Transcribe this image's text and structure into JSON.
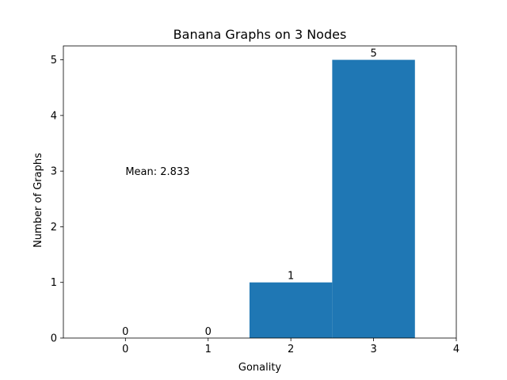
{
  "chart_data": {
    "type": "bar",
    "title": "Banana Graphs on 3 Nodes",
    "xlabel": "Gonality",
    "ylabel": "Number of Graphs",
    "categories": [
      0,
      1,
      2,
      3
    ],
    "values": [
      0,
      0,
      1,
      5
    ],
    "bar_labels": [
      "0",
      "0",
      "1",
      "5"
    ],
    "bar_width": 1,
    "xlim": [
      -0.75,
      4
    ],
    "ylim": [
      0,
      5.25
    ],
    "xticks": [
      0,
      1,
      2,
      3,
      4
    ],
    "yticks": [
      0,
      1,
      2,
      3,
      4,
      5
    ],
    "annotations": [
      {
        "text": "Mean: 2.833",
        "x": 0,
        "y": 3
      }
    ],
    "bar_color": "#1f77b4",
    "grid": false,
    "legend": false
  }
}
